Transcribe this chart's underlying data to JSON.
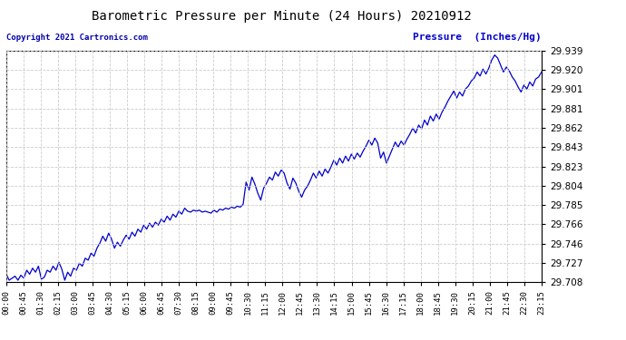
{
  "title": "Barometric Pressure per Minute (24 Hours) 20210912",
  "ylabel": "Pressure  (Inches/Hg)",
  "copyright": "Copyright 2021 Cartronics.com",
  "line_color": "#0000CC",
  "ylabel_color": "#0000CC",
  "copyright_color": "#0000AA",
  "background_color": "#ffffff",
  "grid_color": "#cccccc",
  "ylim": [
    29.708,
    29.939
  ],
  "yticks": [
    29.708,
    29.727,
    29.746,
    29.766,
    29.785,
    29.804,
    29.823,
    29.843,
    29.862,
    29.881,
    29.901,
    29.92,
    29.939
  ],
  "xtick_labels": [
    "00:00",
    "00:45",
    "01:30",
    "02:15",
    "03:00",
    "03:45",
    "04:30",
    "05:15",
    "06:00",
    "06:45",
    "07:30",
    "08:15",
    "09:00",
    "09:45",
    "10:30",
    "11:15",
    "12:00",
    "12:45",
    "13:30",
    "14:15",
    "15:00",
    "15:45",
    "16:30",
    "17:15",
    "18:00",
    "18:45",
    "19:30",
    "20:15",
    "21:00",
    "21:45",
    "22:30",
    "23:15"
  ],
  "pressure_values": [
    29.716,
    29.71,
    29.712,
    29.714,
    29.71,
    29.715,
    29.712,
    29.72,
    29.716,
    29.722,
    29.718,
    29.724,
    29.711,
    29.713,
    29.72,
    29.718,
    29.724,
    29.72,
    29.728,
    29.721,
    29.71,
    29.718,
    29.714,
    29.722,
    29.72,
    29.727,
    29.724,
    29.732,
    29.73,
    29.737,
    29.734,
    29.742,
    29.747,
    29.754,
    29.749,
    29.757,
    29.751,
    29.742,
    29.748,
    29.744,
    29.75,
    29.755,
    29.751,
    29.758,
    29.754,
    29.761,
    29.758,
    29.765,
    29.761,
    29.767,
    29.763,
    29.768,
    29.765,
    29.771,
    29.768,
    29.774,
    29.77,
    29.776,
    29.773,
    29.779,
    29.776,
    29.782,
    29.779,
    29.778,
    29.78,
    29.779,
    29.78,
    29.778,
    29.779,
    29.778,
    29.777,
    29.78,
    29.778,
    29.781,
    29.78,
    29.782,
    29.781,
    29.783,
    29.782,
    29.784,
    29.783,
    29.786,
    29.808,
    29.8,
    29.813,
    29.806,
    29.797,
    29.79,
    29.802,
    29.807,
    29.813,
    29.81,
    29.818,
    29.814,
    29.82,
    29.817,
    29.807,
    29.801,
    29.812,
    29.807,
    29.799,
    29.793,
    29.8,
    29.804,
    29.81,
    29.817,
    29.812,
    29.819,
    29.814,
    29.821,
    29.817,
    29.823,
    29.83,
    29.825,
    29.832,
    29.827,
    29.834,
    29.829,
    29.836,
    29.831,
    29.837,
    29.833,
    29.839,
    29.844,
    29.85,
    29.845,
    29.852,
    29.847,
    29.832,
    29.838,
    29.827,
    29.834,
    29.841,
    29.848,
    29.843,
    29.849,
    29.845,
    29.851,
    29.856,
    29.862,
    29.857,
    29.865,
    29.861,
    29.87,
    29.865,
    29.874,
    29.869,
    29.876,
    29.871,
    29.878,
    29.883,
    29.889,
    29.894,
    29.899,
    29.892,
    29.898,
    29.894,
    29.901,
    29.904,
    29.909,
    29.912,
    29.918,
    29.914,
    29.921,
    29.916,
    29.922,
    29.93,
    29.935,
    29.932,
    29.925,
    29.918,
    29.923,
    29.919,
    29.913,
    29.909,
    29.903,
    29.898,
    29.905,
    29.901,
    29.908,
    29.904,
    29.911,
    29.913,
    29.918
  ]
}
